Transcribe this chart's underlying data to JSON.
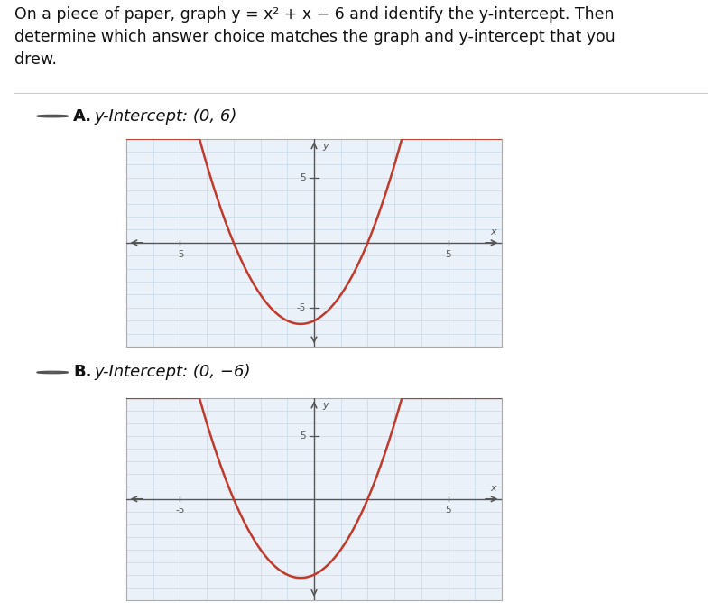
{
  "title_text": "On a piece of paper, graph y = x² + x − 6 and identify the y-intercept. Then\ndetermine which answer choice matches the graph and y-intercept that you\ndrew.",
  "option_A_text": "y-Intercept: (0, 6)",
  "option_B_text": "y-Intercept: (0, −6)",
  "graph_xlim": [
    -7,
    7
  ],
  "graph_ylim_A": [
    -8,
    8
  ],
  "graph_ylim_B": [
    -8,
    8
  ],
  "curve_color": "#c0392b",
  "grid_color": "#c5d8e8",
  "axis_color": "#555555",
  "bg_color": "#eaf1f8",
  "paper_bg": "#ffffff",
  "font_size_title": 12.5,
  "font_size_option": 13,
  "curve_linewidth": 1.8,
  "graph_A_xlim": [
    -7,
    7
  ],
  "graph_A_ylim": [
    -8,
    8
  ],
  "graph_B_xlim": [
    -7,
    7
  ],
  "graph_B_ylim": [
    -8,
    8
  ]
}
